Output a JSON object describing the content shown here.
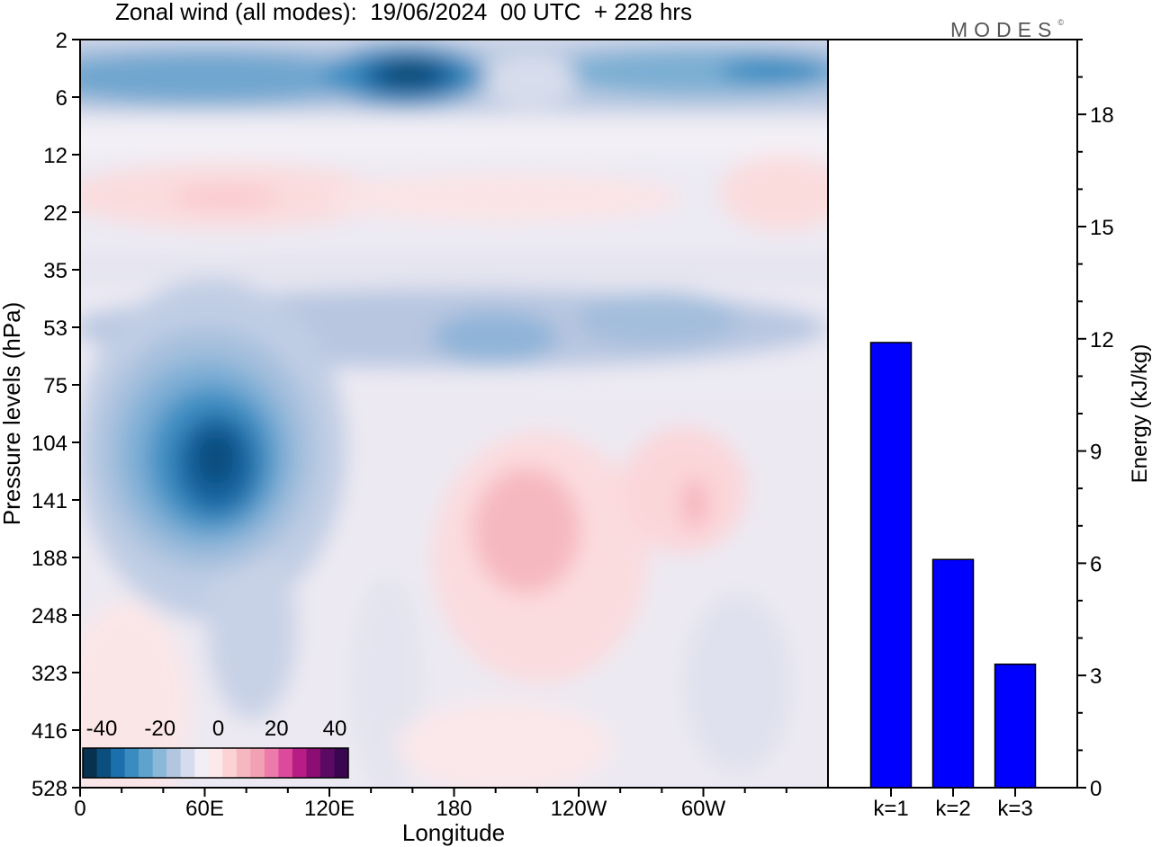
{
  "title": "Zonal wind (all modes):  19/06/2024  00 UTC  + 228 hrs",
  "logo": "MODES",
  "logo_mark": "©",
  "chart_data": [
    {
      "type": "heatmap",
      "xlabel": "Longitude",
      "ylabel": "Pressure levels (hPa)",
      "x_tick_labels": [
        "0",
        "60E",
        "120E",
        "180",
        "120W",
        "60W"
      ],
      "y_tick_labels": [
        "2",
        "6",
        "12",
        "22",
        "35",
        "53",
        "75",
        "104",
        "141",
        "188",
        "248",
        "323",
        "416",
        "528"
      ],
      "colorbar": {
        "tick_labels": [
          "-40",
          "-20",
          "0",
          "20",
          "40"
        ],
        "range": [
          -40,
          40
        ],
        "colors": [
          "#08304f",
          "#0a4f7e",
          "#1a6fac",
          "#3a8cc0",
          "#5fa2cd",
          "#8bb8d8",
          "#b2c6e0",
          "#d5dced",
          "#f1eef5",
          "#fde9ea",
          "#fbd3d5",
          "#f6b8c0",
          "#f2a0b4",
          "#ec7aab",
          "#dc4a9c",
          "#b81d86",
          "#8a0e73",
          "#5b0a64",
          "#3a0650"
        ]
      },
      "features": [
        {
          "name": "upper-easterly-jet",
          "lon_range": [
            0,
            360
          ],
          "pressure_range": [
            2,
            8
          ],
          "approx_value": -25
        },
        {
          "name": "upper-easterly-core",
          "lon": 150,
          "pressure": 4,
          "approx_value": -35
        },
        {
          "name": "weak-westerly-band",
          "lon_range": [
            0,
            360
          ],
          "pressure_range": [
            12,
            25
          ],
          "approx_value": 5
        },
        {
          "name": "easterly-band",
          "lon_range": [
            0,
            360
          ],
          "pressure_range": [
            40,
            80
          ],
          "approx_value": -12
        },
        {
          "name": "tropical-easterly-jet-core",
          "lon": 70,
          "pressure": 120,
          "approx_value": -35
        },
        {
          "name": "westerly-anomaly-central-pacific",
          "lon": 215,
          "pressure": 170,
          "approx_value": 10
        },
        {
          "name": "westerly-anomaly-eastern",
          "lon": 295,
          "pressure": 135,
          "approx_value": 8
        }
      ]
    },
    {
      "type": "bar",
      "categories": [
        "k=1",
        "k=2",
        "k=3"
      ],
      "values": [
        11.9,
        6.1,
        3.3
      ],
      "ylabel": "Energy (kJ/kg)",
      "ylim": [
        0,
        20
      ],
      "y_ticks": [
        0,
        3,
        6,
        9,
        12,
        15,
        18
      ],
      "bar_color": "#0000ff"
    }
  ]
}
